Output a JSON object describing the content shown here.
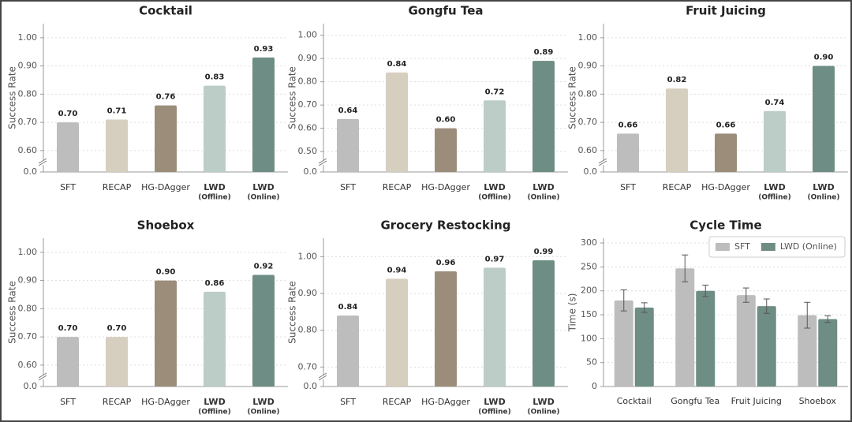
{
  "chart_data": [
    {
      "type": "bar",
      "title": "Cocktail",
      "ylabel": "Success Rate",
      "categories": [
        "SFT",
        "RECAP",
        "HG-DAgger",
        "LWD",
        "LWD"
      ],
      "category_notes": [
        null,
        null,
        null,
        "(Offline)",
        "(Online)"
      ],
      "bold_categories": [
        false,
        false,
        false,
        true,
        true
      ],
      "values": [
        0.7,
        0.71,
        0.76,
        0.83,
        0.93
      ],
      "value_labels": [
        "0.70",
        "0.71",
        "0.76",
        "0.83",
        "0.93"
      ],
      "colors": [
        "#bdbdbd",
        "#d6cfc0",
        "#9c8d7a",
        "#bccdc8",
        "#6e8d84"
      ],
      "ylim": [
        0.58,
        1.05
      ],
      "yticks": [
        {
          "value": 0,
          "label": "0.0"
        },
        {
          "value": 0.6,
          "label": "0.60"
        },
        {
          "value": 0.7,
          "label": "0.70"
        },
        {
          "value": 0.8,
          "label": "0.80"
        },
        {
          "value": 0.9,
          "label": "0.90"
        },
        {
          "value": 1.0,
          "label": "1.00"
        }
      ],
      "axis_break": true,
      "grid": true
    },
    {
      "type": "bar",
      "title": "Gongfu Tea",
      "ylabel": "Success Rate",
      "categories": [
        "SFT",
        "RECAP",
        "HG-DAgger",
        "LWD",
        "LWD"
      ],
      "category_notes": [
        null,
        null,
        null,
        "(Offline)",
        "(Online)"
      ],
      "bold_categories": [
        false,
        false,
        false,
        true,
        true
      ],
      "values": [
        0.64,
        0.84,
        0.6,
        0.72,
        0.89
      ],
      "value_labels": [
        "0.64",
        "0.84",
        "0.60",
        "0.72",
        "0.89"
      ],
      "colors": [
        "#bdbdbd",
        "#d6cfc0",
        "#9c8d7a",
        "#bccdc8",
        "#6e8d84"
      ],
      "ylim": [
        0.48,
        1.05
      ],
      "yticks": [
        {
          "value": 0,
          "label": "0.0"
        },
        {
          "value": 0.5,
          "label": "0.50"
        },
        {
          "value": 0.6,
          "label": "0.60"
        },
        {
          "value": 0.7,
          "label": "0.70"
        },
        {
          "value": 0.8,
          "label": "0.80"
        },
        {
          "value": 0.9,
          "label": "0.90"
        },
        {
          "value": 1.0,
          "label": "1.00"
        }
      ],
      "axis_break": true,
      "grid": true
    },
    {
      "type": "bar",
      "title": "Fruit Juicing",
      "ylabel": "Success Rate",
      "categories": [
        "SFT",
        "RECAP",
        "HG-DAgger",
        "LWD",
        "LWD"
      ],
      "category_notes": [
        null,
        null,
        null,
        "(Offline)",
        "(Online)"
      ],
      "bold_categories": [
        false,
        false,
        false,
        true,
        true
      ],
      "values": [
        0.66,
        0.82,
        0.66,
        0.74,
        0.9
      ],
      "value_labels": [
        "0.66",
        "0.82",
        "0.66",
        "0.74",
        "0.90"
      ],
      "colors": [
        "#bdbdbd",
        "#d6cfc0",
        "#9c8d7a",
        "#bccdc8",
        "#6e8d84"
      ],
      "ylim": [
        0.58,
        1.05
      ],
      "yticks": [
        {
          "value": 0,
          "label": "0.0"
        },
        {
          "value": 0.6,
          "label": "0.60"
        },
        {
          "value": 0.7,
          "label": "0.70"
        },
        {
          "value": 0.8,
          "label": "0.80"
        },
        {
          "value": 0.9,
          "label": "0.90"
        },
        {
          "value": 1.0,
          "label": "1.00"
        }
      ],
      "axis_break": true,
      "grid": true
    },
    {
      "type": "bar",
      "title": "Shoebox",
      "ylabel": "Success Rate",
      "categories": [
        "SFT",
        "RECAP",
        "HG-DAgger",
        "LWD",
        "LWD"
      ],
      "category_notes": [
        null,
        null,
        null,
        "(Offline)",
        "(Online)"
      ],
      "bold_categories": [
        false,
        false,
        false,
        true,
        true
      ],
      "values": [
        0.7,
        0.7,
        0.9,
        0.86,
        0.92
      ],
      "value_labels": [
        "0.70",
        "0.70",
        "0.90",
        "0.86",
        "0.92"
      ],
      "colors": [
        "#bdbdbd",
        "#d6cfc0",
        "#9c8d7a",
        "#bccdc8",
        "#6e8d84"
      ],
      "ylim": [
        0.58,
        1.05
      ],
      "yticks": [
        {
          "value": 0,
          "label": "0.0"
        },
        {
          "value": 0.6,
          "label": "0.60"
        },
        {
          "value": 0.7,
          "label": "0.70"
        },
        {
          "value": 0.8,
          "label": "0.80"
        },
        {
          "value": 0.9,
          "label": "0.90"
        },
        {
          "value": 1.0,
          "label": "1.00"
        }
      ],
      "axis_break": true,
      "grid": true
    },
    {
      "type": "bar",
      "title": "Grocery Restocking",
      "ylabel": "Success Rate",
      "categories": [
        "SFT",
        "RECAP",
        "HG-DAgger",
        "LWD",
        "LWD"
      ],
      "category_notes": [
        null,
        null,
        null,
        "(Offline)",
        "(Online)"
      ],
      "bold_categories": [
        false,
        false,
        false,
        true,
        true
      ],
      "values": [
        0.84,
        0.94,
        0.96,
        0.97,
        0.99
      ],
      "value_labels": [
        "0.84",
        "0.94",
        "0.96",
        "0.97",
        "0.99"
      ],
      "colors": [
        "#bdbdbd",
        "#d6cfc0",
        "#9c8d7a",
        "#bccdc8",
        "#6e8d84"
      ],
      "ylim": [
        0.69,
        1.05
      ],
      "yticks": [
        {
          "value": 0,
          "label": "0.0"
        },
        {
          "value": 0.7,
          "label": "0.70"
        },
        {
          "value": 0.8,
          "label": "0.80"
        },
        {
          "value": 0.9,
          "label": "0.90"
        },
        {
          "value": 1.0,
          "label": "1.00"
        }
      ],
      "axis_break": true,
      "grid": true
    },
    {
      "type": "grouped_bar",
      "title": "Cycle Time",
      "ylabel": "Time (s)",
      "categories": [
        "Cocktail",
        "Gongfu Tea",
        "Fruit Juicing",
        "Shoebox"
      ],
      "series": [
        {
          "name": "SFT",
          "color": "#bdbdbd",
          "values": [
            180,
            247,
            191,
            149
          ],
          "errors": [
            22,
            28,
            15,
            27
          ]
        },
        {
          "name": "LWD (Online)",
          "color": "#6e8d84",
          "values": [
            165,
            200,
            168,
            141
          ],
          "errors": [
            10,
            12,
            15,
            7
          ]
        }
      ],
      "ylim": [
        0,
        310
      ],
      "yticks": [
        0,
        50,
        100,
        150,
        200,
        250,
        300
      ],
      "legend": "upper right",
      "grid": true
    }
  ]
}
